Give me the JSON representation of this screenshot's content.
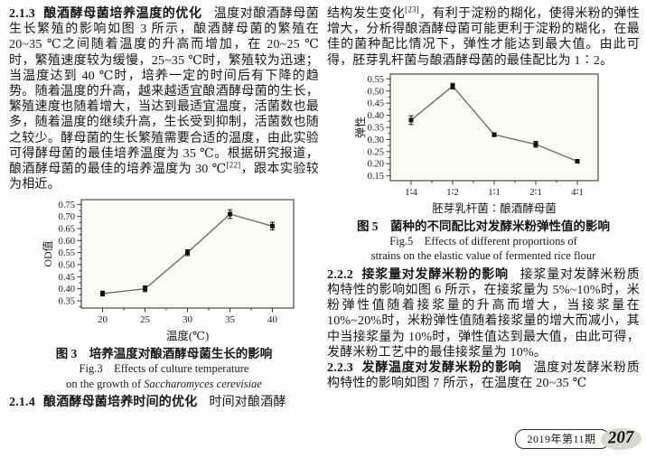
{
  "doc": {
    "left": {
      "s213": {
        "num": "2.1.3",
        "title": "酿酒酵母菌培养温度的优化",
        "body1": "温度对酿酒酵母菌生长繁殖的影响如图 3 所示，酿酒酵母菌的繁殖在 20~35 ℃之间随着温度的升高而增加，在 20~25 ℃时，繁殖速度较为缓慢，25~35 ℃时，繁殖较为迅速；当温度达到 40 ℃时，培养一定的时间后有下降的趋势。随着温度的升高，越来越适宜酿酒酵母菌的生长，繁殖速度也随着增大，当达到最适宜温度，活菌数也最多，随着温度的继续升高，生长受到抑制，活菌数也随之较少。酵母菌的生长繁殖需要合适的温度，由此实验可得酵母菌的最佳培养温度为 35 ℃。根据研究报道，酿酒酵母菌的最佳的培养温度为 30 ℃",
        "cite": "[22]",
        "body2": "，跟本实验较为相近。"
      },
      "fig3": {
        "caption_cn": "图 3　培养温度对酿酒酵母菌生长的影响",
        "caption_en1": "Fig.3　Effects of culture temperature",
        "caption_en2_pre": "on the growth of ",
        "caption_en2_species": "Saccharomyces cerevisiae"
      },
      "s214": {
        "num": "2.1.4",
        "title": "酿酒酵母菌培养时间的优化",
        "body": "时间对酿酒酵"
      }
    },
    "right": {
      "p1": {
        "body1": "结构发生变化",
        "cite": "[23]",
        "body2": "，有利于淀粉的糊化，使得米粉的弹性增大，分析得酿酒酵母菌可能更利于淀粉的糊化，在最佳的菌种配比情况下，弹性才能达到最大值。由此可得，胚芽乳杆菌与酿酒酵母菌的最佳配比为 1∶2。"
      },
      "fig5": {
        "caption_cn": "图 5　菌种的不同配比对发酵米粉弹性值的影响",
        "caption_en1": "Fig.5　Effects of different proportions of",
        "caption_en2": "strains on the elastic value of fermented rice flour"
      },
      "s222": {
        "num": "2.2.2",
        "title": "接浆量对发酵米粉的影响",
        "body": "接浆量对发酵米粉质构特性的影响如图 6 所示，在接浆量为 5%~10%时，米粉弹性值随着接浆量的升高而增大，当接浆量在 10%~20%时，米粉弹性值随着接浆量的增大而减小，其中当接浆量为 10%时，弹性值达到最大值，由此可得，发酵米粉工艺中的最佳接浆量为 10%。"
      },
      "s223": {
        "num": "2.2.3",
        "title": "发酵温度对发酵米粉的影响",
        "body": "温度对发酵米粉质构特性的影响如图 7 所示，在温度在 20~35 ℃"
      }
    },
    "footer": {
      "issue": "2019年第11期",
      "page": "207"
    }
  },
  "chart_data": [
    {
      "id": "fig3",
      "type": "line",
      "title": "图3 培养温度对酿酒酵母菌生长的影响",
      "title_en": "Fig.3 Effects of culture temperature on the growth of Saccharomyces cerevisiae",
      "xlabel": "温度(℃)",
      "ylabel": "OD值",
      "categories": [
        "20",
        "25",
        "30",
        "35",
        "40"
      ],
      "values": [
        0.38,
        0.4,
        0.55,
        0.71,
        0.66
      ],
      "errors": [
        0.01,
        0.012,
        0.012,
        0.018,
        0.016
      ],
      "ylim": [
        0.32,
        0.77
      ],
      "yticks": [
        0.35,
        0.4,
        0.45,
        0.5,
        0.55,
        0.6,
        0.65,
        0.7,
        0.75
      ],
      "legend": "none",
      "grid": false,
      "plot_bg": "#fbfaf7",
      "line_color": "#6e6e6e",
      "marker": "square",
      "marker_color": "#111111"
    },
    {
      "id": "fig5",
      "type": "line",
      "title": "图5 菌种的不同配比对发酵米粉弹性值的影响",
      "title_en": "Fig.5 Effects of different proportions of strains on the elastic value of fermented rice flour",
      "xlabel": "胚芽乳杆菌∶酿酒酵母菌",
      "ylabel": "弹性",
      "categories": [
        "1∶4",
        "1∶2",
        "1∶1",
        "2∶1",
        "4∶1"
      ],
      "values": [
        0.38,
        0.52,
        0.32,
        0.28,
        0.21
      ],
      "errors": [
        0.018,
        0.012,
        0.008,
        0.012,
        0.007
      ],
      "ylim": [
        0.13,
        0.57
      ],
      "yticks": [
        0.15,
        0.2,
        0.25,
        0.3,
        0.35,
        0.4,
        0.45,
        0.5,
        0.55
      ],
      "legend": "none",
      "grid": false,
      "plot_bg": "#fbfaf7",
      "line_color": "#6e6e6e",
      "marker": "square",
      "marker_color": "#111111"
    }
  ]
}
